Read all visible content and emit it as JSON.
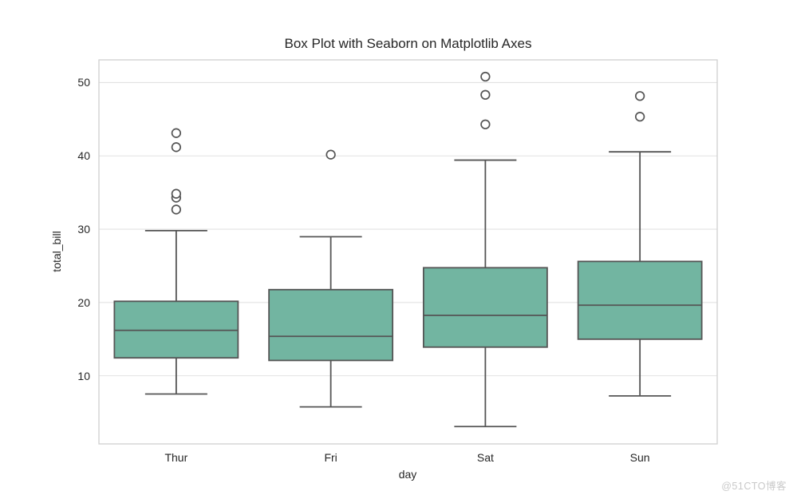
{
  "watermark": {
    "text": "@51CTO博客",
    "color": "#c9c9c9"
  },
  "chart_data": {
    "type": "box",
    "title": "Box Plot with Seaborn on Matplotlib Axes",
    "xlabel": "day",
    "ylabel": "total_bill",
    "categories": [
      "Thur",
      "Fri",
      "Sat",
      "Sun"
    ],
    "yticks": [
      10,
      20,
      30,
      40,
      50
    ],
    "ylim": [
      0.7,
      53.1
    ],
    "grid": "horizontal-only",
    "legend": "none",
    "series": [
      {
        "category": "Thur",
        "whisker_low": 7.51,
        "q1": 12.44,
        "median": 16.2,
        "q3": 20.16,
        "whisker_high": 29.8,
        "outliers": [
          32.68,
          34.3,
          34.83,
          41.19,
          43.11
        ]
      },
      {
        "category": "Fri",
        "whisker_low": 5.75,
        "q1": 12.09,
        "median": 15.38,
        "q3": 21.75,
        "whisker_high": 28.97,
        "outliers": [
          40.17
        ]
      },
      {
        "category": "Sat",
        "whisker_low": 3.07,
        "q1": 13.91,
        "median": 18.24,
        "q3": 24.74,
        "whisker_high": 39.42,
        "outliers": [
          44.3,
          48.33,
          50.81
        ]
      },
      {
        "category": "Sun",
        "whisker_low": 7.25,
        "q1": 14.99,
        "median": 19.63,
        "q3": 25.6,
        "whisker_high": 40.55,
        "outliers": [
          45.35,
          48.17
        ]
      }
    ],
    "colors": {
      "box_fill": "#72b5a1",
      "box_edge": "#555555",
      "grid": "#e2e2e2",
      "spine": "#cfcfcf",
      "text": "#262626",
      "background": "#ffffff"
    }
  }
}
